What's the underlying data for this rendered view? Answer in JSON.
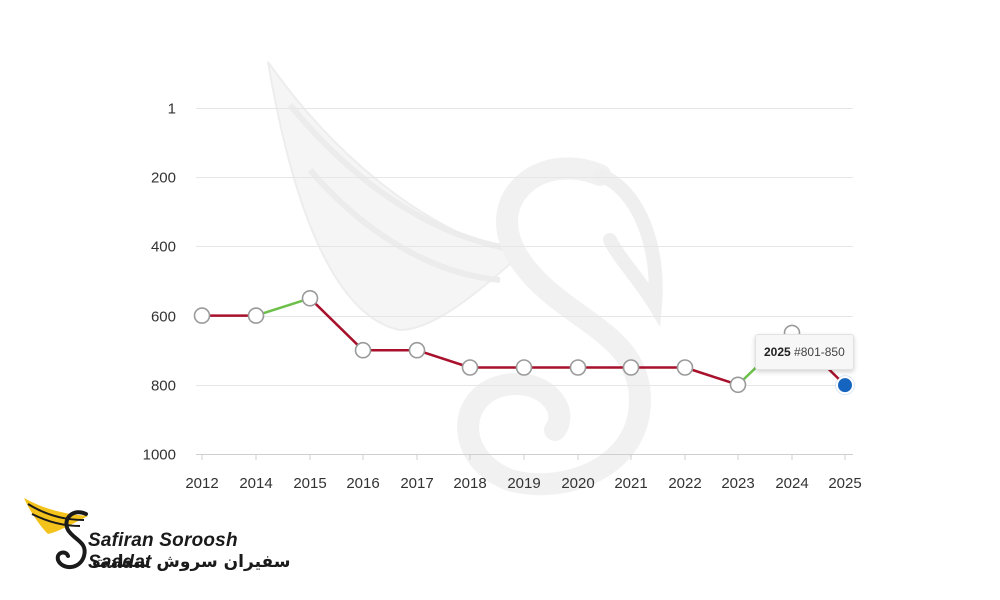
{
  "chart_data": {
    "type": "line",
    "x": [
      "2012",
      "2014",
      "2015",
      "2016",
      "2017",
      "2018",
      "2019",
      "2020",
      "2021",
      "2022",
      "2023",
      "2024",
      "2025"
    ],
    "series": [
      {
        "values": [
          600,
          600,
          550,
          700,
          700,
          750,
          750,
          750,
          750,
          750,
          800,
          650,
          801
        ]
      }
    ],
    "yticks": [
      "1",
      "200",
      "400",
      "600",
      "800",
      "1000"
    ],
    "ylim": [
      1,
      1000
    ],
    "y_reversed": true,
    "grid": true,
    "colors": {
      "up": "#6cc04a",
      "down": "#a8112c",
      "flat": "#a8112c",
      "highlight": "#1565c0"
    },
    "tooltip": {
      "year": "2025",
      "text": "#801-850"
    }
  },
  "logo": {
    "en": "Safiran Soroosh Saadat",
    "fa": "سفیران سروش سعادت"
  }
}
